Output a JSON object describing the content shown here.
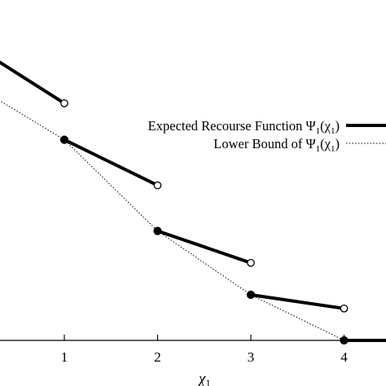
{
  "chart_data": {
    "type": "line",
    "title": "",
    "xlabel": "χ",
    "xlabel_subscript": "1",
    "ylabel": "",
    "xlim": [
      -0.7,
      4.5
    ],
    "ylim": [
      -0.12,
      3.3
    ],
    "x_ticks": [
      1,
      2,
      3,
      4
    ],
    "x_tick_labels": [
      "1",
      "2",
      "3",
      "4"
    ],
    "grid": false,
    "legend_position": "right",
    "series": [
      {
        "name": "Expected Recourse Function Ψ1(χ1)",
        "legend_main": "Expected Recourse Function Ψ",
        "legend_args": "(χ",
        "legend_sub": "1",
        "line_style": "solid",
        "color": "#000000",
        "segments": [
          {
            "start": [
              0,
              3.25
            ],
            "end": [
              1,
              2.6
            ],
            "start_marker": "filled",
            "end_marker": "open"
          },
          {
            "start": [
              1,
              2.2
            ],
            "end": [
              2,
              1.7
            ],
            "start_marker": "filled",
            "end_marker": "open"
          },
          {
            "start": [
              2,
              1.2
            ],
            "end": [
              3,
              0.85
            ],
            "start_marker": "filled",
            "end_marker": "open"
          },
          {
            "start": [
              3,
              0.5
            ],
            "end": [
              4,
              0.35
            ],
            "start_marker": "filled",
            "end_marker": "open"
          },
          {
            "start": [
              4,
              0.0
            ],
            "end": [
              4.5,
              0.0
            ],
            "start_marker": "filled",
            "end_marker": "none"
          }
        ]
      },
      {
        "name": "Lower Bound of Ψ1(χ1)",
        "legend_main": "Lower Bound of Ψ",
        "legend_args": "(χ",
        "legend_sub": "1",
        "line_style": "dotted",
        "color": "#000000",
        "x": [
          -0.7,
          1,
          2,
          3,
          4
        ],
        "y": [
          3.25,
          2.2,
          1.2,
          0.5,
          0.0
        ]
      }
    ]
  }
}
